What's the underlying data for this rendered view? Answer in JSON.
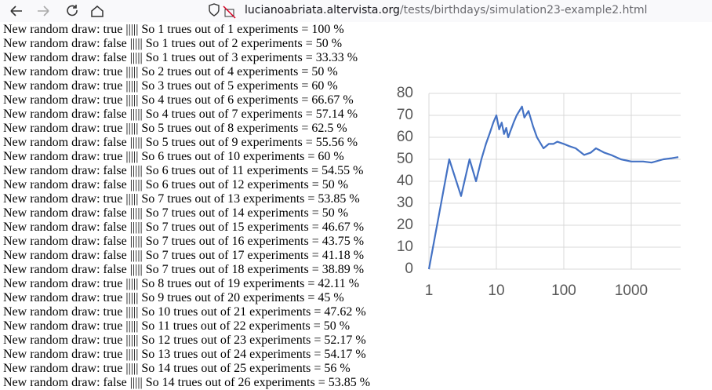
{
  "browser": {
    "url_host": "lucianoabriata.altervista.org",
    "url_path": "/tests/birthdays/simulation23-example2.html"
  },
  "lines": [
    "New random draw: true ||||| So 1 trues out of 1 experiments = 100 %",
    "New random draw: false ||||| So 1 trues out of 2 experiments = 50 %",
    "New random draw: false ||||| So 1 trues out of 3 experiments = 33.33 %",
    "New random draw: true ||||| So 2 trues out of 4 experiments = 50 %",
    "New random draw: true ||||| So 3 trues out of 5 experiments = 60 %",
    "New random draw: true ||||| So 4 trues out of 6 experiments = 66.67 %",
    "New random draw: false ||||| So 4 trues out of 7 experiments = 57.14 %",
    "New random draw: true ||||| So 5 trues out of 8 experiments = 62.5 %",
    "New random draw: false ||||| So 5 trues out of 9 experiments = 55.56 %",
    "New random draw: true ||||| So 6 trues out of 10 experiments = 60 %",
    "New random draw: false ||||| So 6 trues out of 11 experiments = 54.55 %",
    "New random draw: false ||||| So 6 trues out of 12 experiments = 50 %",
    "New random draw: true ||||| So 7 trues out of 13 experiments = 53.85 %",
    "New random draw: false ||||| So 7 trues out of 14 experiments = 50 %",
    "New random draw: false ||||| So 7 trues out of 15 experiments = 46.67 %",
    "New random draw: false ||||| So 7 trues out of 16 experiments = 43.75 %",
    "New random draw: false ||||| So 7 trues out of 17 experiments = 41.18 %",
    "New random draw: false ||||| So 7 trues out of 18 experiments = 38.89 %",
    "New random draw: true ||||| So 8 trues out of 19 experiments = 42.11 %",
    "New random draw: true ||||| So 9 trues out of 20 experiments = 45 %",
    "New random draw: true ||||| So 10 trues out of 21 experiments = 47.62 %",
    "New random draw: true ||||| So 11 trues out of 22 experiments = 50 %",
    "New random draw: true ||||| So 12 trues out of 23 experiments = 52.17 %",
    "New random draw: true ||||| So 13 trues out of 24 experiments = 54.17 %",
    "New random draw: true ||||| So 14 trues out of 25 experiments = 56 %",
    "New random draw: false ||||| So 14 trues out of 26 experiments = 53.85 %"
  ],
  "chart_data": {
    "type": "line",
    "color": "#4472c4",
    "xscale": "log",
    "grid": true,
    "x": [
      1,
      2,
      3,
      4,
      5,
      6,
      7,
      8,
      9,
      10,
      11,
      12,
      13,
      14,
      15,
      16,
      18,
      20,
      24,
      26,
      30,
      35,
      40,
      50,
      60,
      70,
      80,
      100,
      120,
      150,
      200,
      250,
      300,
      400,
      500,
      700,
      1000,
      1500,
      2000,
      3000,
      4000,
      5000
    ],
    "values": [
      0,
      50,
      33.3,
      50,
      40,
      50,
      57,
      62,
      66.7,
      70,
      63.6,
      66.7,
      61.5,
      64.3,
      60,
      62.5,
      66.7,
      70,
      74,
      69,
      72,
      65,
      60,
      55,
      57,
      57,
      58,
      57,
      56,
      55,
      52,
      53,
      55,
      53,
      52,
      50,
      49,
      49,
      48.5,
      50,
      50.5,
      51
    ],
    "xlim": [
      1,
      5400
    ],
    "ylim": [
      0,
      80
    ],
    "xticks": [
      1,
      10,
      100,
      1000
    ],
    "yticks": [
      0,
      10,
      20,
      30,
      40,
      50,
      60,
      70,
      80
    ]
  }
}
